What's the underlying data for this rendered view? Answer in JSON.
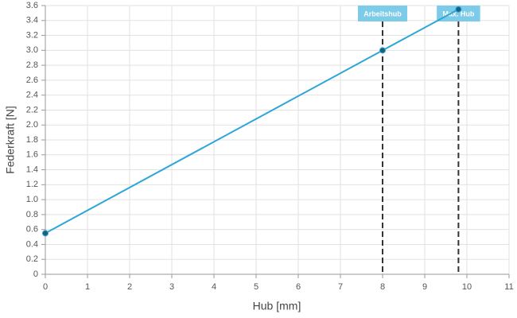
{
  "chart_data": {
    "type": "line",
    "x": [
      0,
      8,
      9.8
    ],
    "values": [
      0.55,
      3.0,
      3.55
    ],
    "color": "#2ea6d8",
    "marker_color": "#1f5f7a",
    "xlabel": "Hub [mm]",
    "ylabel": "Federkraft [N]",
    "xlim": [
      0,
      11
    ],
    "xticks": [
      0,
      1,
      2,
      3,
      4,
      5,
      6,
      7,
      8,
      9,
      10,
      11
    ],
    "ylim": [
      0,
      3.6
    ],
    "yticks": [
      0,
      0.2,
      0.4,
      0.6,
      0.8,
      {
        "value": 1,
        "label": "1.0"
      },
      1.2,
      1.4,
      1.6,
      1.8,
      {
        "value": 2,
        "label": "2.0"
      },
      2.2,
      2.4,
      2.6,
      2.8,
      {
        "value": 3,
        "label": "3.0"
      },
      3.2,
      3.4,
      3.6
    ],
    "grid": true,
    "annotations": [
      {
        "x": 8,
        "label": "Arbeitshub"
      },
      {
        "x": 9.8,
        "label": "Max. Hub"
      }
    ],
    "annotation_color": "#7ccbe8"
  }
}
